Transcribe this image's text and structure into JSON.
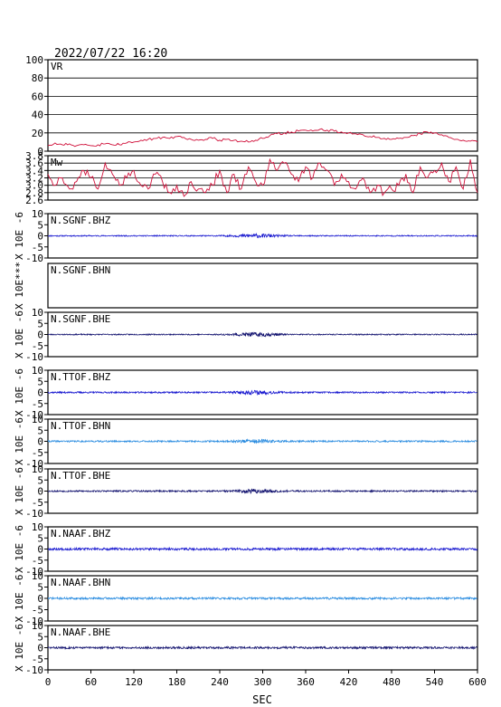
{
  "timestamp": "2022/07/22  16:20",
  "xlabel": "SEC",
  "colors": {
    "frame": "#000000",
    "vr": "#d0103a",
    "mw": "#d0103a",
    "blue": "#1a1ad0",
    "light_blue": "#2a8ce0",
    "navy": "#141470"
  },
  "chart_data": [
    {
      "type": "line",
      "label": "VR",
      "ylim": [
        0,
        100
      ],
      "yticks": [
        "100",
        "80",
        "60",
        "40",
        "20",
        "0"
      ],
      "ytick_values": [
        100,
        80,
        60,
        40,
        20,
        0
      ],
      "grid": true,
      "ylabel": "",
      "xlim": [
        0,
        600
      ],
      "x": [
        0,
        10,
        20,
        30,
        40,
        50,
        60,
        70,
        80,
        90,
        100,
        110,
        120,
        130,
        140,
        150,
        160,
        170,
        180,
        190,
        200,
        210,
        220,
        230,
        240,
        250,
        260,
        270,
        280,
        290,
        300,
        310,
        320,
        330,
        340,
        350,
        360,
        370,
        380,
        390,
        400,
        410,
        420,
        430,
        440,
        450,
        460,
        470,
        480,
        490,
        500,
        510,
        520,
        530,
        540,
        550,
        560,
        570,
        580,
        590,
        600
      ],
      "values": [
        6,
        9,
        7,
        8,
        6,
        7,
        6,
        7,
        8,
        7,
        7,
        9,
        10,
        12,
        13,
        14,
        15,
        14,
        16,
        15,
        13,
        12,
        13,
        14,
        12,
        13,
        12,
        11,
        10,
        12,
        14,
        17,
        19,
        20,
        21,
        22,
        23,
        22,
        24,
        23,
        22,
        21,
        20,
        19,
        18,
        16,
        15,
        14,
        13,
        14,
        15,
        17,
        19,
        21,
        20,
        18,
        15,
        13,
        12,
        11,
        10
      ],
      "color": "#d0103a"
    },
    {
      "type": "line",
      "label": "Mw",
      "ylim": [
        2.6,
        3.8
      ],
      "yticks": [
        "3.8",
        "3.6",
        "3.4",
        "3.2",
        "3.0",
        "2.8",
        "2.6"
      ],
      "ytick_values": [
        3.8,
        3.6,
        3.4,
        3.2,
        3.0,
        2.8,
        2.6
      ],
      "grid": true,
      "ylabel": "",
      "xlim": [
        0,
        600
      ],
      "x": [
        0,
        10,
        20,
        30,
        40,
        50,
        60,
        70,
        80,
        90,
        100,
        110,
        120,
        130,
        140,
        150,
        160,
        170,
        180,
        190,
        200,
        210,
        220,
        230,
        240,
        250,
        260,
        270,
        280,
        290,
        300,
        310,
        320,
        330,
        340,
        350,
        360,
        370,
        380,
        390,
        400,
        410,
        420,
        430,
        440,
        450,
        460,
        470,
        480,
        490,
        500,
        510,
        520,
        530,
        540,
        550,
        560,
        570,
        580,
        590,
        600
      ],
      "values": [
        3.3,
        3.0,
        3.2,
        2.9,
        3.1,
        3.4,
        3.2,
        2.9,
        3.6,
        3.3,
        3.0,
        3.2,
        3.4,
        3.0,
        2.9,
        3.3,
        3.1,
        2.8,
        3.0,
        2.7,
        3.1,
        2.9,
        2.8,
        3.0,
        3.4,
        2.8,
        3.3,
        2.9,
        3.5,
        3.1,
        3.0,
        3.7,
        3.4,
        3.6,
        3.3,
        3.1,
        3.5,
        3.2,
        3.6,
        3.4,
        3.0,
        3.3,
        3.1,
        2.9,
        3.2,
        2.8,
        3.0,
        2.8,
        2.9,
        3.0,
        3.3,
        2.8,
        3.5,
        3.2,
        3.4,
        3.6,
        3.1,
        3.5,
        2.9,
        3.7,
        2.8
      ],
      "color": "#d0103a"
    },
    {
      "type": "line",
      "label": "N.SGNF.BHZ",
      "ylim": [
        -10,
        10
      ],
      "yticks": [
        "10",
        "5",
        "0",
        "-5",
        "-10"
      ],
      "ytick_values": [
        10,
        5,
        0,
        -5,
        -10
      ],
      "ylabel": "X 10E -6",
      "color": "#1a1ad0",
      "noise_amplitude": 0.25,
      "burst_center": 290,
      "burst_width": 30,
      "burst_amplitude": 0.7,
      "seed": 11,
      "xlim": [
        0,
        600
      ]
    },
    {
      "type": "line",
      "label": "N.SGNF.BHN",
      "ylim": null,
      "yticks": [],
      "ytick_values": [],
      "ylabel": "X 10E***",
      "color": "#1a1ad0",
      "no_data": true,
      "xlim": [
        0,
        600
      ]
    },
    {
      "type": "line",
      "label": "N.SGNF.BHE",
      "ylim": [
        -10,
        10
      ],
      "yticks": [
        "10",
        "5",
        "0",
        "-5",
        "-10"
      ],
      "ytick_values": [
        10,
        5,
        0,
        -5,
        -10
      ],
      "ylabel": "X 10E -6",
      "color": "#141470",
      "noise_amplitude": 0.25,
      "burst_center": 290,
      "burst_width": 30,
      "burst_amplitude": 0.8,
      "seed": 23,
      "xlim": [
        0,
        600
      ]
    },
    {
      "type": "line",
      "label": "N.TTOF.BHZ",
      "ylim": [
        -10,
        10
      ],
      "yticks": [
        "10",
        "5",
        "0",
        "-5",
        "-10"
      ],
      "ytick_values": [
        10,
        5,
        0,
        -5,
        -10
      ],
      "ylabel": "X 10E -6",
      "color": "#1a1ad0",
      "noise_amplitude": 0.35,
      "burst_center": 290,
      "burst_width": 25,
      "burst_amplitude": 0.7,
      "seed": 37,
      "xlim": [
        0,
        600
      ]
    },
    {
      "type": "line",
      "label": "N.TTOF.BHN",
      "ylim": [
        -10,
        10
      ],
      "yticks": [
        "10",
        "5",
        "0",
        "-5",
        "-10"
      ],
      "ytick_values": [
        10,
        5,
        0,
        -5,
        -10
      ],
      "ylabel": "X 10E -6",
      "color": "#2a8ce0",
      "noise_amplitude": 0.35,
      "burst_center": 290,
      "burst_width": 25,
      "burst_amplitude": 0.7,
      "seed": 41,
      "xlim": [
        0,
        600
      ]
    },
    {
      "type": "line",
      "label": "N.TTOF.BHE",
      "ylim": [
        -10,
        10
      ],
      "yticks": [
        "10",
        "5",
        "0",
        "-5",
        "-10"
      ],
      "ytick_values": [
        10,
        5,
        0,
        -5,
        -10
      ],
      "ylabel": "X 10E -6",
      "color": "#141470",
      "noise_amplitude": 0.35,
      "burst_center": 290,
      "burst_width": 25,
      "burst_amplitude": 0.8,
      "seed": 53,
      "xlim": [
        0,
        600
      ]
    },
    {
      "type": "line",
      "label": "N.NAAF.BHZ",
      "ylim": [
        -10,
        10
      ],
      "yticks": [
        "10",
        "5",
        "0",
        "-5",
        "-10"
      ],
      "ytick_values": [
        10,
        5,
        0,
        -5,
        -10
      ],
      "ylabel": "X 10E -6",
      "color": "#1a1ad0",
      "noise_amplitude": 0.5,
      "burst_center": 300,
      "burst_width": 10,
      "burst_amplitude": 0.0,
      "seed": 67,
      "xlim": [
        0,
        600
      ]
    },
    {
      "type": "line",
      "label": "N.NAAF.BHN",
      "ylim": [
        -10,
        10
      ],
      "yticks": [
        "10",
        "5",
        "0",
        "-5",
        "-10"
      ],
      "ytick_values": [
        10,
        5,
        0,
        -5,
        -10
      ],
      "ylabel": "X 10E -6",
      "color": "#2a8ce0",
      "noise_amplitude": 0.45,
      "burst_center": 300,
      "burst_width": 10,
      "burst_amplitude": 0.0,
      "seed": 71,
      "xlim": [
        0,
        600
      ]
    },
    {
      "type": "line",
      "label": "N.NAAF.BHE",
      "ylim": [
        -10,
        10
      ],
      "yticks": [
        "10",
        "5",
        "0",
        "-5",
        "-10"
      ],
      "ytick_values": [
        10,
        5,
        0,
        -5,
        -10
      ],
      "ylabel": "X 10E -6",
      "color": "#141470",
      "noise_amplitude": 0.45,
      "burst_center": 300,
      "burst_width": 10,
      "burst_amplitude": 0.0,
      "seed": 83,
      "xlim": [
        0,
        600
      ]
    }
  ],
  "xticks": [
    "0",
    "60",
    "120",
    "180",
    "240",
    "300",
    "360",
    "420",
    "480",
    "540",
    "600"
  ],
  "xtick_values": [
    0,
    60,
    120,
    180,
    240,
    300,
    360,
    420,
    480,
    540,
    600
  ]
}
